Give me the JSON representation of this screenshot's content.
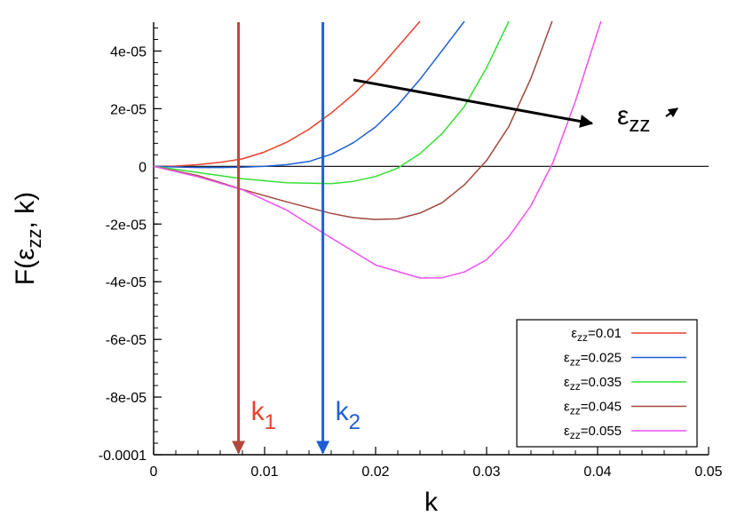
{
  "chart_data": {
    "type": "line",
    "xlabel": "k",
    "ylabel": "F(ε_zz, k)",
    "xlim": [
      0,
      0.05
    ],
    "ylim": [
      -0.0001,
      5e-05
    ],
    "x_ticks": [
      0,
      0.01,
      0.02,
      0.03,
      0.04,
      0.05
    ],
    "x_tick_labels": [
      "0",
      "0.01",
      "0.02",
      "0.03",
      "0.04",
      "0.05"
    ],
    "y_ticks": [
      4e-05,
      2e-05,
      0,
      -2e-05,
      -4e-05,
      -6e-05,
      -8e-05,
      -0.0001
    ],
    "y_tick_labels": [
      "4e-05",
      "2e-05",
      "0",
      "-2e-05",
      "-4e-05",
      "-6e-05",
      "-8e-05",
      "-0.0001"
    ],
    "grid": false,
    "legend_position": "bottom-right",
    "series": [
      {
        "name": "εzz=0.01",
        "color": "#e8402a",
        "x": [
          0,
          0.002,
          0.004,
          0.006,
          0.008,
          0.01,
          0.012,
          0.014,
          0.016,
          0.018,
          0.02,
          0.022,
          0.024
        ],
        "y": [
          0,
          1e-07,
          6e-07,
          1.4e-06,
          2.6e-06,
          5e-06,
          8.4e-06,
          1.29e-05,
          1.85e-05,
          2.5e-05,
          3.26e-05,
          4.14e-05,
          5.03e-05
        ]
      },
      {
        "name": "εzz=0.025",
        "color": "#1e5fd6",
        "x": [
          0,
          0.002,
          0.004,
          0.006,
          0.008,
          0.01,
          0.012,
          0.014,
          0.016,
          0.018,
          0.02,
          0.022,
          0.024,
          0.026,
          0.028
        ],
        "y": [
          0,
          -2e-07,
          -4e-07,
          -4e-07,
          -3e-07,
          0,
          6e-07,
          1.7e-06,
          4.2e-06,
          8.2e-06,
          1.37e-05,
          2.12e-05,
          3.02e-05,
          4.02e-05,
          5.03e-05
        ]
      },
      {
        "name": "εzz=0.035",
        "color": "#33e033",
        "x": [
          0,
          0.004,
          0.008,
          0.012,
          0.016,
          0.018,
          0.02,
          0.022,
          0.024,
          0.026,
          0.028,
          0.03,
          0.032
        ],
        "y": [
          0,
          -2.1e-06,
          -4.3e-06,
          -5.7e-06,
          -6e-06,
          -5.2e-06,
          -3.5e-06,
          -6e-07,
          4.4e-06,
          1.14e-05,
          2.08e-05,
          3.42e-05,
          5.03e-05
        ]
      },
      {
        "name": "εzz=0.045",
        "color": "#a0483c",
        "x": [
          0,
          0.004,
          0.008,
          0.012,
          0.016,
          0.018,
          0.02,
          0.022,
          0.024,
          0.026,
          0.028,
          0.03,
          0.032,
          0.034,
          0.0359
        ],
        "y": [
          0,
          -3.2e-06,
          -8e-06,
          -1.23e-05,
          -1.63e-05,
          -1.78e-05,
          -1.84e-05,
          -1.82e-05,
          -1.62e-05,
          -1.26e-05,
          -6.4e-06,
          2e-06,
          1.38e-05,
          3.06e-05,
          5.03e-05
        ]
      },
      {
        "name": "εzz=0.055",
        "color": "#f050f0",
        "x": [
          0,
          0.004,
          0.008,
          0.012,
          0.016,
          0.02,
          0.024,
          0.026,
          0.028,
          0.03,
          0.032,
          0.034,
          0.036,
          0.038,
          0.0403
        ],
        "y": [
          0,
          -3.6e-06,
          -8.1e-06,
          -1.52e-05,
          -2.48e-05,
          -3.42e-05,
          -3.87e-05,
          -3.86e-05,
          -3.66e-05,
          -3.24e-05,
          -2.44e-05,
          -1.36e-05,
          1.5e-06,
          2.26e-05,
          5.03e-05
        ]
      }
    ],
    "reference_line": {
      "y": 0,
      "color": "#000000"
    },
    "markers": [
      {
        "label_main": "k",
        "label_sub": "1",
        "x": 0.00765,
        "color": "#b04a3e",
        "label_color": "#e8402a"
      },
      {
        "label_main": "k",
        "label_sub": "2",
        "x": 0.01525,
        "color": "#1e5fd6",
        "label_color": "#1e5fd6"
      }
    ],
    "annotation": {
      "label_main": "ε",
      "label_sub": "zz",
      "arrow_from": {
        "x": 0.018,
        "y": 3e-05
      },
      "arrow_to": {
        "x": 0.0395,
        "y": 1.49e-05
      }
    }
  }
}
